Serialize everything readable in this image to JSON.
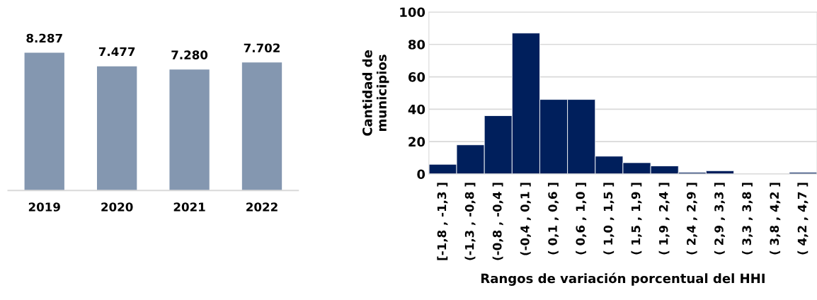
{
  "chart_data": [
    {
      "type": "bar",
      "categories": [
        "2019",
        "2020",
        "2021",
        "2022"
      ],
      "values": [
        8287,
        7477,
        7280,
        7702
      ],
      "value_labels": [
        "8.287",
        "7.477",
        "7.280",
        "7.702"
      ],
      "color": "#8497b0",
      "grid": false,
      "legend": false
    },
    {
      "type": "bar",
      "categories": [
        "[-1,8 , -1,3 ]",
        "(-1,3 , -0,8 ]",
        "(-0,8 , -0,4 ]",
        "(-0,4 , 0,1 ]",
        "( 0,1 , 0,6 ]",
        "( 0,6 , 1,0 ]",
        "( 1,0 , 1,5 ]",
        "( 1,5 , 1,9 ]",
        "( 1,9 , 2,4 ]",
        "( 2,4 , 2,9 ]",
        "( 2,9 , 3,3 ]",
        "( 3,3 , 3,8 ]",
        "( 3,8 , 4,2 ]",
        "( 4,2 , 4,7 ]"
      ],
      "values": [
        6,
        18,
        36,
        87,
        46,
        46,
        11,
        7,
        5,
        1,
        2,
        0,
        0,
        1
      ],
      "color": "#001f5c",
      "ylim": [
        0,
        100
      ],
      "yticks": [
        0,
        20,
        40,
        60,
        80,
        100
      ],
      "grid": "y",
      "legend": false,
      "ylabel": "Cantidad de\nmunicipios",
      "xlabel": "Rangos de variación porcentual del HHI"
    }
  ]
}
